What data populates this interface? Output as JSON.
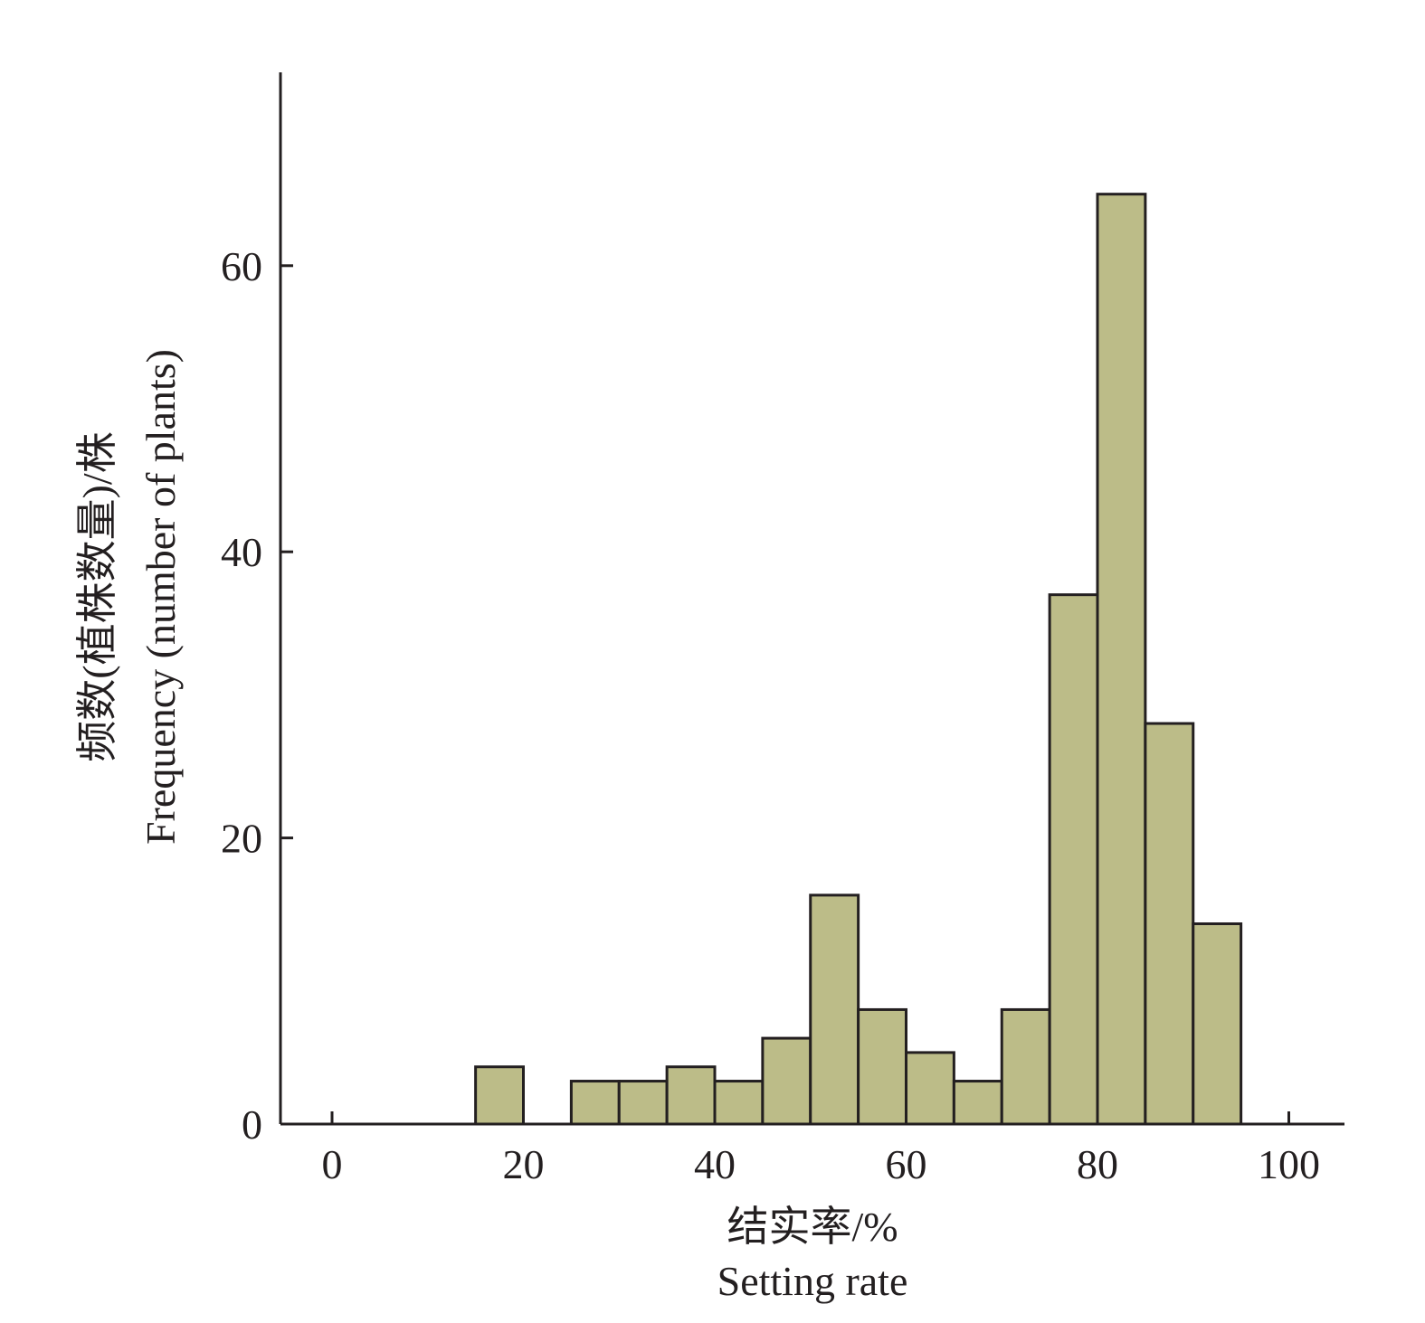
{
  "chart_data": {
    "type": "bar",
    "title": "",
    "xlabel_cn": "结实率/%",
    "xlabel_en": "Setting rate",
    "ylabel_cn": "频数(植株数量)/株",
    "ylabel_en": "Frequency (number of plants)",
    "bar_color": "#bcbc88",
    "edge_color": "#231f20",
    "xlim": [
      -2.8,
      105.8
    ],
    "ylim": [
      0,
      73.5
    ],
    "xticks": [
      0,
      20,
      40,
      60,
      80,
      100
    ],
    "yticks": [
      0,
      20,
      40,
      60
    ],
    "bin_width": 5,
    "bins": [
      {
        "x": 15,
        "value": 4
      },
      {
        "x": 25,
        "value": 3
      },
      {
        "x": 30,
        "value": 3
      },
      {
        "x": 35,
        "value": 4
      },
      {
        "x": 40,
        "value": 3
      },
      {
        "x": 45,
        "value": 6
      },
      {
        "x": 50,
        "value": 16
      },
      {
        "x": 55,
        "value": 8
      },
      {
        "x": 60,
        "value": 5
      },
      {
        "x": 65,
        "value": 3
      },
      {
        "x": 70,
        "value": 8
      },
      {
        "x": 75,
        "value": 37
      },
      {
        "x": 80,
        "value": 65
      },
      {
        "x": 85,
        "value": 28
      },
      {
        "x": 90,
        "value": 14
      }
    ]
  }
}
